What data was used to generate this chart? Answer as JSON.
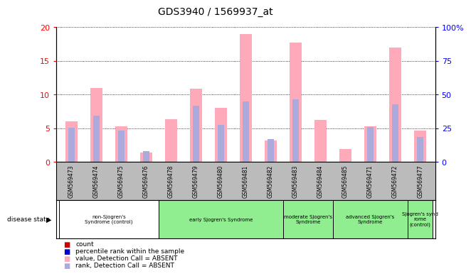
{
  "title": "GDS3940 / 1569937_at",
  "samples": [
    "GSM569473",
    "GSM569474",
    "GSM569475",
    "GSM569476",
    "GSM569478",
    "GSM569479",
    "GSM569480",
    "GSM569481",
    "GSM569482",
    "GSM569483",
    "GSM569484",
    "GSM569485",
    "GSM569471",
    "GSM569472",
    "GSM569477"
  ],
  "value_absent": [
    6.0,
    11.0,
    5.3,
    1.4,
    6.3,
    10.8,
    8.0,
    18.9,
    3.2,
    17.7,
    6.2,
    1.9,
    5.3,
    16.9,
    4.6
  ],
  "rank_absent": [
    5.1,
    6.8,
    4.6,
    1.6,
    0.0,
    8.3,
    5.5,
    9.0,
    3.4,
    9.3,
    0.0,
    0.0,
    5.2,
    8.5,
    3.7
  ],
  "ylim_left": [
    0,
    20
  ],
  "ylim_right": [
    0,
    100
  ],
  "yticks_left": [
    0,
    5,
    10,
    15,
    20
  ],
  "yticks_right": [
    0,
    25,
    50,
    75,
    100
  ],
  "left_tick_labels": [
    "0",
    "5",
    "10",
    "15",
    "20"
  ],
  "right_tick_labels": [
    "0",
    "25",
    "50",
    "75",
    "100%"
  ],
  "group_ranges": [
    [
      0,
      3
    ],
    [
      4,
      8
    ],
    [
      9,
      10
    ],
    [
      11,
      13
    ],
    [
      14,
      14
    ]
  ],
  "group_labels": [
    "non-Sjogren's\nSyndrome (control)",
    "early Sjogren's Syndrome",
    "moderate Sjogren's\nSyndrome",
    "advanced Sjogren's\nSyndrome",
    "Sjogren's synd\nrome\n(control)"
  ],
  "group_colors": [
    "#ffffff",
    "#90ee90",
    "#90ee90",
    "#90ee90",
    "#90ee90"
  ],
  "color_value_absent": "#ffaabb",
  "color_rank_absent": "#aaaadd",
  "color_count": "#cc0000",
  "color_percentile": "#0000cc",
  "xticklabel_bg": "#bbbbbb",
  "legend_items": [
    "count",
    "percentile rank within the sample",
    "value, Detection Call = ABSENT",
    "rank, Detection Call = ABSENT"
  ],
  "legend_colors": [
    "#cc0000",
    "#0000cc",
    "#ffaabb",
    "#aaaadd"
  ],
  "disease_state_label": "disease state"
}
